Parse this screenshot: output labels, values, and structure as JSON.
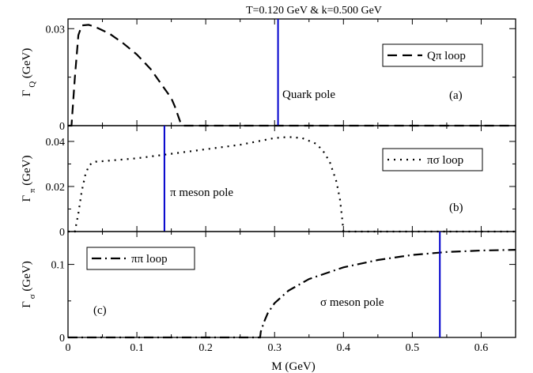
{
  "title": "T=0.120 GeV & k=0.500 GeV",
  "chart_data": {
    "type": "line",
    "title": "T=0.120 GeV & k=0.500 GeV",
    "xlabel": "M (GeV)",
    "xlim": [
      0,
      0.65
    ],
    "xticks": [
      "0",
      "0.1",
      "0.2",
      "0.3",
      "0.4",
      "0.5",
      "0.6"
    ],
    "panels": [
      {
        "id": "a",
        "panel_label": "(a)",
        "ylabel_main": "Γ",
        "ylabel_sub": "Q",
        "ylabel_unit": "(GeV)",
        "ylim": [
          0,
          0.033
        ],
        "yticks": [
          0,
          0.03
        ],
        "ytick_labels": [
          "0",
          "0.03"
        ],
        "series": [
          {
            "name": "Qπ loop",
            "style": "dashed",
            "color": "#000000",
            "x": [
              0,
              0.005,
              0.01,
              0.015,
              0.02,
              0.03,
              0.04,
              0.06,
              0.08,
              0.1,
              0.12,
              0.14,
              0.15,
              0.155,
              0.16,
              0.163,
              0.165,
              0.168,
              0.2,
              0.3,
              0.4,
              0.5,
              0.6,
              0.65
            ],
            "y": [
              0,
              0,
              0.015,
              0.028,
              0.031,
              0.0312,
              0.0305,
              0.0285,
              0.0255,
              0.022,
              0.0175,
              0.0115,
              0.0085,
              0.006,
              0.003,
              0.0012,
              0.0003,
              0,
              0,
              0,
              0,
              0,
              0,
              0
            ]
          }
        ],
        "pole": {
          "label": "Quark pole",
          "x": 0.305,
          "color": "#0000cc"
        }
      },
      {
        "id": "b",
        "panel_label": "(b)",
        "ylabel_main": "Γ",
        "ylabel_sub": "π",
        "ylabel_unit": "(GeV)",
        "ylim": [
          0,
          0.047
        ],
        "yticks": [
          0,
          0.02,
          0.04
        ],
        "ytick_labels": [
          "0",
          "0.02",
          "0.04"
        ],
        "series": [
          {
            "name": "πσ loop",
            "style": "dotted",
            "color": "#000000",
            "x": [
              0,
              0.01,
              0.015,
              0.02,
              0.025,
              0.03,
              0.035,
              0.04,
              0.05,
              0.1,
              0.15,
              0.2,
              0.25,
              0.3,
              0.32,
              0.34,
              0.36,
              0.37,
              0.38,
              0.39,
              0.395,
              0.398,
              0.4,
              0.45,
              0.5,
              0.55,
              0.6,
              0.65
            ],
            "y": [
              0,
              0,
              0.008,
              0.018,
              0.025,
              0.029,
              0.0305,
              0.031,
              0.0312,
              0.0325,
              0.0345,
              0.0365,
              0.0385,
              0.0415,
              0.042,
              0.0415,
              0.039,
              0.036,
              0.031,
              0.022,
              0.014,
              0.006,
              0,
              0,
              0,
              0,
              0,
              0
            ]
          }
        ],
        "pole": {
          "label": "π meson pole",
          "x": 0.14,
          "color": "#0000cc"
        }
      },
      {
        "id": "c",
        "panel_label": "(c)",
        "ylabel_main": "Γ",
        "ylabel_sub": "σ",
        "ylabel_unit": "(GeV)",
        "ylim": [
          0,
          0.145
        ],
        "yticks": [
          0,
          0.1
        ],
        "ytick_labels": [
          "0",
          "0.1"
        ],
        "series": [
          {
            "name": "ππ loop",
            "style": "dashdot",
            "color": "#000000",
            "x": [
              0,
              0.1,
              0.2,
              0.27,
              0.279,
              0.28,
              0.285,
              0.29,
              0.3,
              0.32,
              0.35,
              0.4,
              0.45,
              0.5,
              0.55,
              0.6,
              0.65
            ],
            "y": [
              0,
              0,
              0,
              0,
              0,
              0.008,
              0.022,
              0.033,
              0.047,
              0.064,
              0.08,
              0.096,
              0.106,
              0.113,
              0.117,
              0.119,
              0.12
            ]
          }
        ],
        "pole": {
          "label": "σ meson pole",
          "x": 0.54,
          "color": "#0000cc"
        }
      }
    ]
  }
}
